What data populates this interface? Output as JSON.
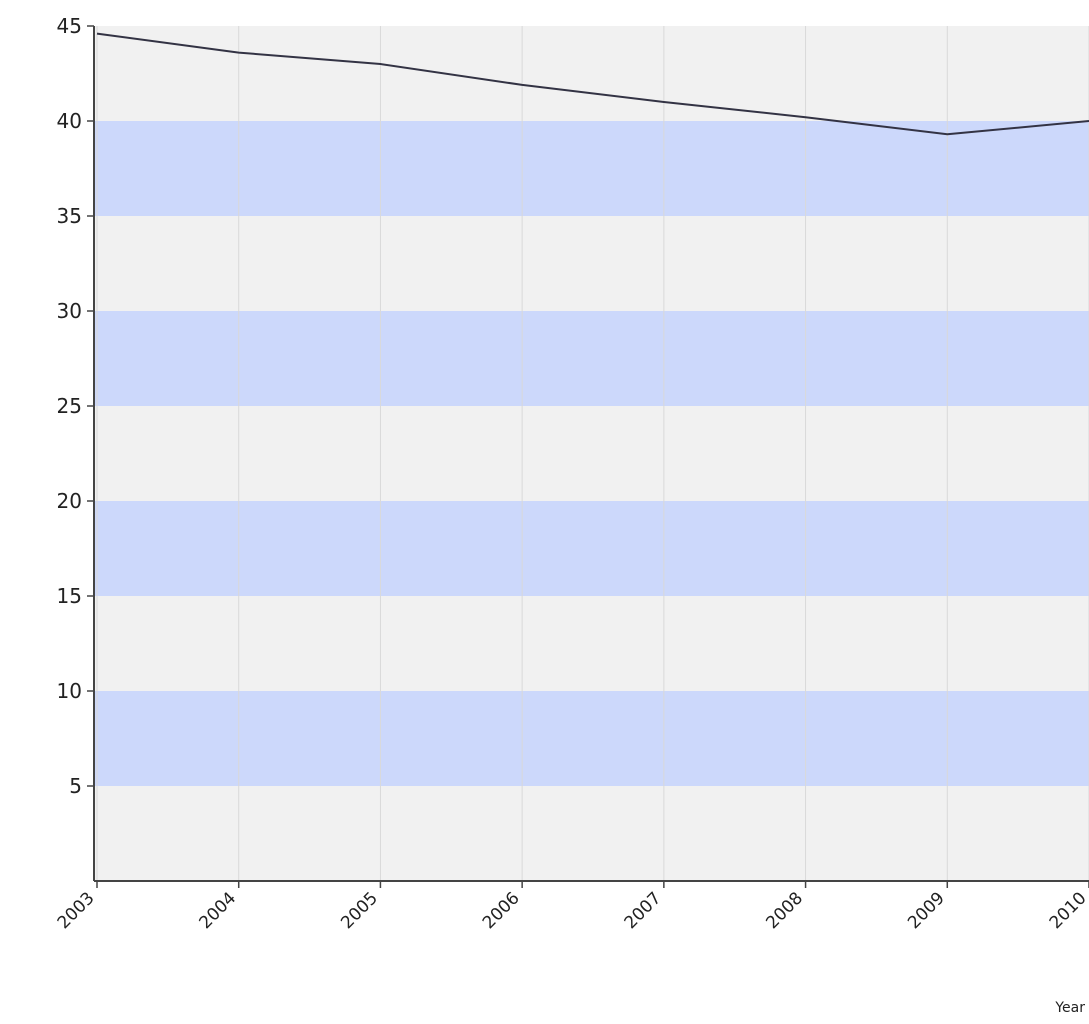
{
  "colors": {
    "plot_background": "#f1f1f1",
    "band_fill": "#ccd8fb",
    "gridline": "#d9d9d9",
    "axis": "#444444",
    "line": "#333344"
  },
  "chart_data": {
    "type": "line",
    "xlabel": "Year",
    "ylabel": "",
    "title": "",
    "categories": [
      "2003",
      "2004",
      "2005",
      "2006",
      "2007",
      "2008",
      "2009",
      "2010"
    ],
    "series": [
      {
        "values": [
          44.6,
          43.6,
          43.0,
          41.9,
          41.0,
          40.2,
          39.3,
          40.0
        ]
      }
    ],
    "ylim": [
      0,
      45
    ],
    "yticks": [
      5,
      10,
      15,
      20,
      25,
      30,
      35,
      40,
      45
    ],
    "bands": [
      [
        5,
        10
      ],
      [
        15,
        20
      ],
      [
        25,
        30
      ],
      [
        35,
        40
      ]
    ],
    "grid": "vertical",
    "legend": "none"
  }
}
